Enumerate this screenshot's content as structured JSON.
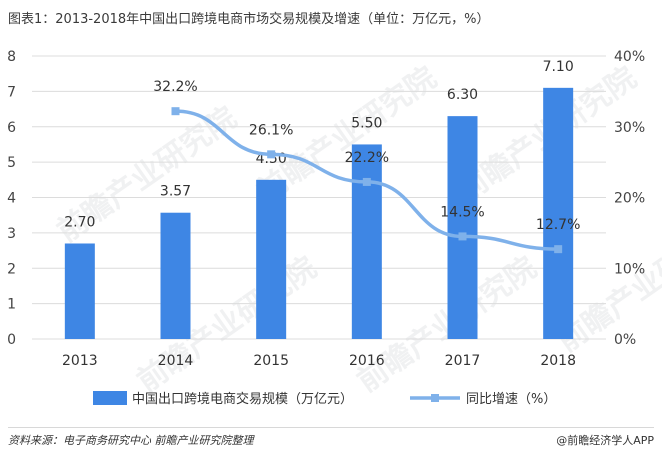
{
  "title": "图表1：2013-2018年中国出口跨境电商市场交易规模及增速（单位：万亿元，%）",
  "source": "资料来源：电子商务研究中心 前瞻产业研究院整理",
  "brand": "@前瞻经济学人APP",
  "watermark": "前瞻产业研究院",
  "colors": {
    "bar": "#3e86e4",
    "line": "#7fb1ea",
    "grid": "#dcdcdc"
  },
  "chart_data": {
    "type": "bar",
    "categories": [
      "2013",
      "2014",
      "2015",
      "2016",
      "2017",
      "2018"
    ],
    "series": [
      {
        "name": "中国出口跨境电商交易规模（万亿元）",
        "type": "bar",
        "axis": "left",
        "values": [
          2.7,
          3.57,
          4.5,
          5.5,
          6.3,
          7.1
        ],
        "labels": [
          "2.70",
          "3.57",
          "4.50",
          "5.50",
          "6.30",
          "7.10"
        ]
      },
      {
        "name": "同比增速（%）",
        "type": "line",
        "axis": "right",
        "values": [
          null,
          32.2,
          26.1,
          22.2,
          14.5,
          12.7
        ],
        "labels": [
          "",
          "32.2%",
          "26.1%",
          "22.2%",
          "14.5%",
          "12.7%"
        ]
      }
    ],
    "y_left": {
      "min": 0,
      "max": 8,
      "ticks": [
        "0",
        "1",
        "2",
        "3",
        "4",
        "5",
        "6",
        "7",
        "8"
      ]
    },
    "y_right": {
      "min": 0,
      "max": 40,
      "ticks": [
        "0%",
        "10%",
        "20%",
        "30%",
        "40%"
      ]
    },
    "grid": true,
    "legend": "bottom"
  }
}
